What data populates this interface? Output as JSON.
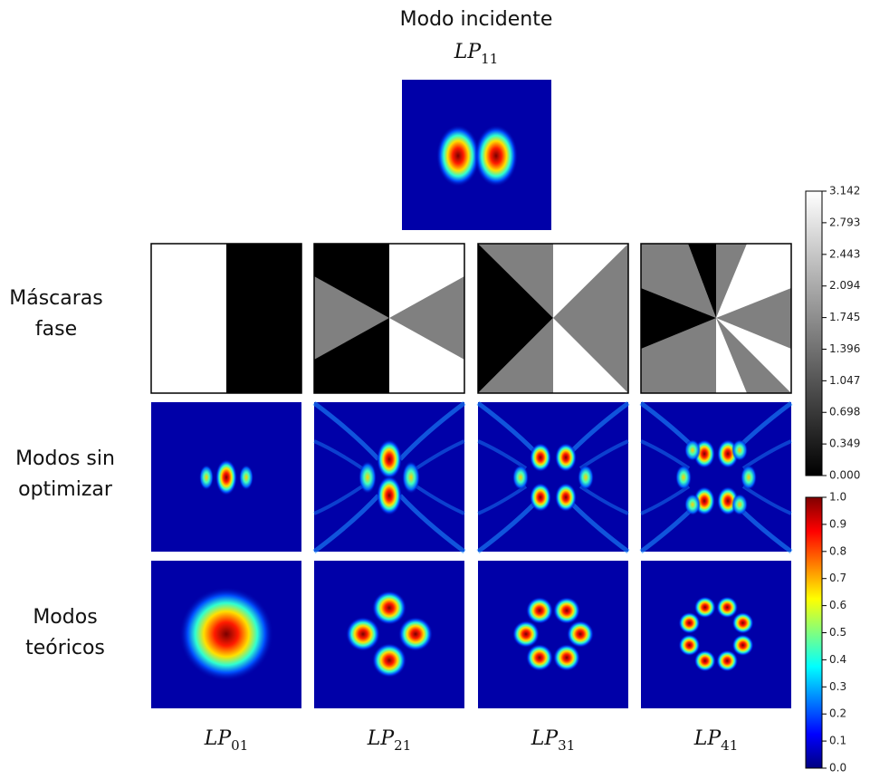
{
  "title": "Modo incidente",
  "incident_mode": {
    "base": "LP",
    "sub": "11"
  },
  "row_labels": [
    [
      "Máscaras",
      "fase"
    ],
    [
      "Modos sin",
      "optimizar"
    ],
    [
      "Modos",
      "teóricos"
    ]
  ],
  "column_labels": [
    {
      "base": "LP",
      "sub": "01"
    },
    {
      "base": "LP",
      "sub": "21"
    },
    {
      "base": "LP",
      "sub": "31"
    },
    {
      "base": "LP",
      "sub": "41"
    }
  ],
  "phase_colorbar": {
    "lim": [
      0,
      3.142
    ],
    "ticks": [
      {
        "value": 0,
        "label": "0.000"
      },
      0.349,
      0.698,
      1.047,
      1.396,
      1.745,
      2.094,
      2.443,
      2.793,
      3.142
    ]
  },
  "intensity_colorbar": {
    "lim": [
      0,
      1
    ],
    "ticks": [
      {
        "value": 0,
        "label": "0.0"
      },
      0.1,
      0.2,
      0.3,
      0.4,
      0.5,
      0.6,
      0.7,
      0.8,
      0.9,
      {
        "value": 1,
        "label": "1.0"
      }
    ]
  }
}
